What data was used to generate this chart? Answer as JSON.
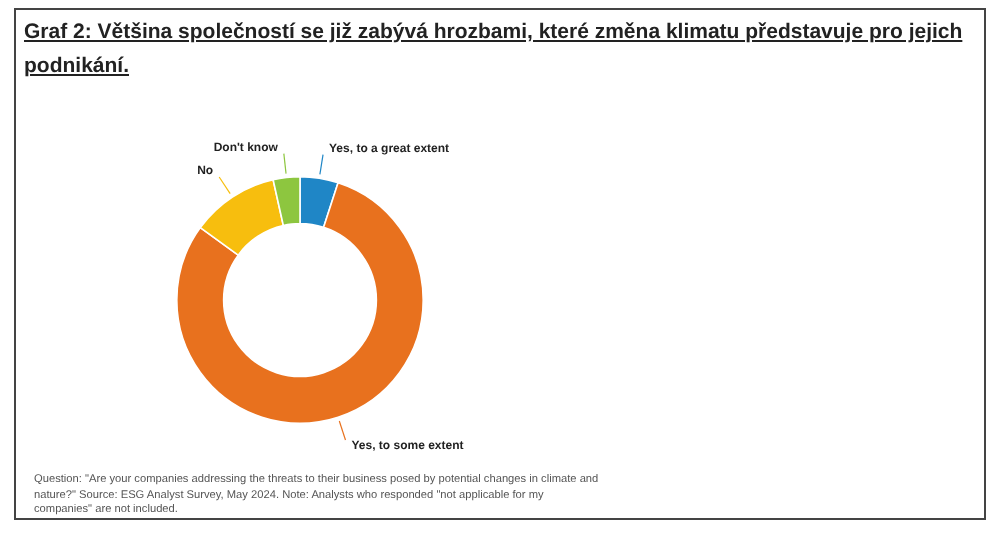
{
  "chart_data": {
    "type": "donut",
    "title": "Graf 2: Většina společností se již zabývá hrozbami, které změna klimatu představuje pro jejich podnikání.",
    "categories": [
      "Yes, to a great extent",
      "Yes, to some extent",
      "No",
      "Don't know"
    ],
    "values": [
      5,
      80,
      11.5,
      3.5
    ],
    "colors": [
      "#1f86c6",
      "#e8711e",
      "#f7be0e",
      "#8dc63f"
    ],
    "legend": false,
    "annotations": [
      "Question: \"Are your companies addressing the threats to their business posed by potential changes in climate and nature?\" Source: ESG Analyst Survey, May 2024. Note: Analysts who responded \"not applicable for my companies\" are not included."
    ]
  }
}
